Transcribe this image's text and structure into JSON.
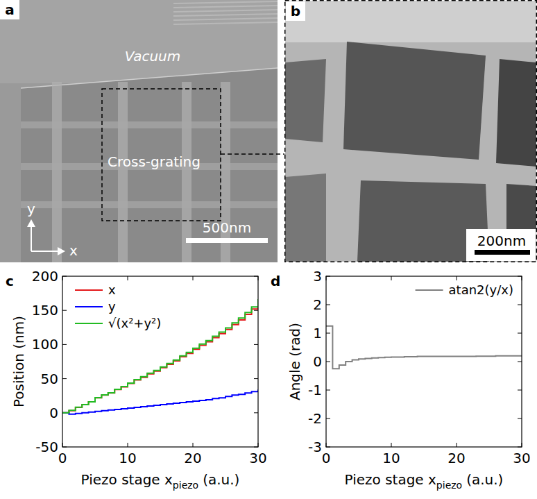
{
  "images": [
    {
      "panel_label": "a",
      "labels": [
        "Vacuum",
        "Cross-grating"
      ],
      "scale_bar": "500nm",
      "axis_labels": [
        "x",
        "y"
      ]
    },
    {
      "panel_label": "b",
      "scale_bar": "200nm"
    }
  ],
  "chart_data": [
    {
      "panel_label": "c",
      "type": "line",
      "xlabel": [
        "Piezo stage x",
        "piezo",
        "(a.u.)"
      ],
      "ylabel": "Position (nm)",
      "x": [
        0,
        1,
        2,
        3,
        4,
        5,
        6,
        7,
        8,
        9,
        10,
        11,
        12,
        13,
        14,
        15,
        16,
        17,
        18,
        19,
        20,
        21,
        22,
        23,
        24,
        25,
        26,
        27,
        28,
        29,
        30
      ],
      "xlim": [
        0,
        30
      ],
      "xticks": [
        0,
        10,
        20,
        30
      ],
      "ylim": [
        -50,
        200
      ],
      "yticks": [
        -50,
        0,
        50,
        100,
        150,
        200
      ],
      "legend": "upper left",
      "line_style": "steps",
      "series": [
        {
          "name": "x",
          "color": "#e41a1c",
          "values": [
            0,
            3,
            8,
            12,
            16,
            22,
            26,
            29,
            34,
            38,
            43,
            48,
            52,
            57,
            61,
            66,
            71,
            76,
            82,
            87,
            93,
            99,
            104,
            110,
            116,
            122,
            129,
            136,
            144,
            152,
            163
          ]
        },
        {
          "name": "y",
          "color": "#0000ff",
          "values": [
            0,
            -2,
            -1,
            0,
            1,
            2,
            3,
            4,
            5,
            6,
            7,
            8,
            9,
            10,
            11,
            12,
            13,
            14,
            15,
            16,
            17,
            18,
            19,
            21,
            22,
            24,
            26,
            27,
            29,
            31,
            34
          ]
        },
        {
          "name": "√(x²+y²)",
          "color": "#22bb22",
          "values": [
            0,
            3.6,
            8.1,
            12,
            16,
            22.1,
            26.2,
            29.3,
            34.4,
            38.5,
            43.6,
            48.7,
            52.8,
            57.9,
            62,
            67.1,
            72.2,
            77.3,
            83.4,
            88.4,
            94.5,
            100.6,
            105.7,
            112,
            118.1,
            124.3,
            131.6,
            138.7,
            146.9,
            155.1,
            166.5
          ]
        }
      ]
    },
    {
      "panel_label": "d",
      "type": "line",
      "xlabel": [
        "Piezo stage x",
        "piezo",
        "(a.u.)"
      ],
      "ylabel": "Angle (rad)",
      "x": [
        0,
        1,
        2,
        3,
        4,
        5,
        6,
        7,
        8,
        9,
        10,
        11,
        12,
        13,
        14,
        15,
        16,
        17,
        18,
        19,
        20,
        21,
        22,
        23,
        24,
        25,
        26,
        27,
        28,
        29,
        30
      ],
      "xlim": [
        0,
        30
      ],
      "xticks": [
        0,
        10,
        20,
        30
      ],
      "ylim": [
        -3,
        3
      ],
      "yticks": [
        -3,
        -2,
        -1,
        0,
        1,
        2,
        3
      ],
      "legend": "upper right",
      "line_style": "steps",
      "series": [
        {
          "name": "atan2(y/x)",
          "color": "#808080",
          "values": [
            1.25,
            -0.25,
            -0.12,
            0,
            0.06,
            0.09,
            0.11,
            0.13,
            0.14,
            0.15,
            0.16,
            0.16,
            0.17,
            0.17,
            0.18,
            0.18,
            0.18,
            0.18,
            0.18,
            0.18,
            0.18,
            0.18,
            0.18,
            0.19,
            0.19,
            0.19,
            0.2,
            0.2,
            0.2,
            0.2,
            0.2
          ]
        }
      ]
    }
  ]
}
